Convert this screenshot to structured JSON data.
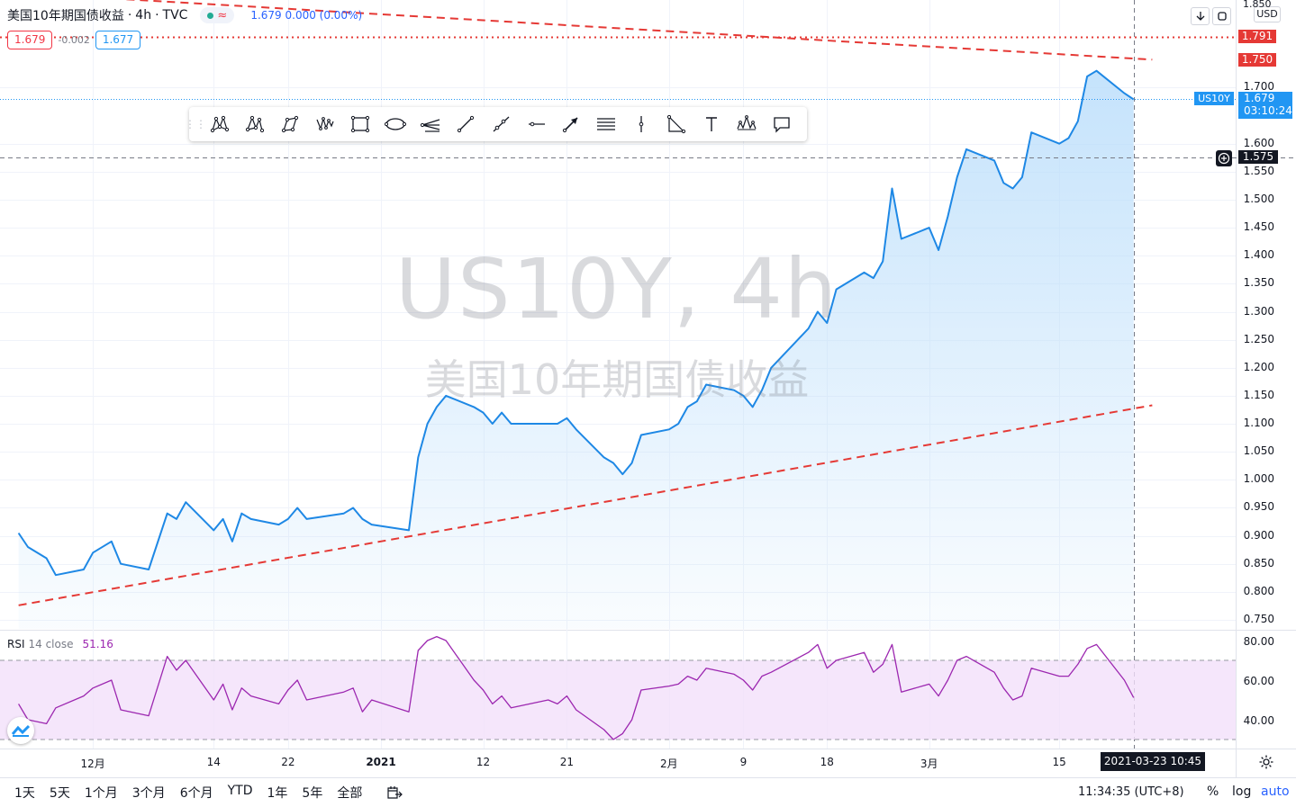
{
  "header": {
    "symbol_name": "美国10年期国债收益",
    "interval": "4h",
    "exchange": "TVC",
    "market_status": "green-dot-icon",
    "quote": "1.679 0.000 (0.00%)",
    "sell_price": "1.679",
    "spread": "-0.002",
    "buy_price": "1.677"
  },
  "watermark": {
    "symbol": "US10Y, 4h",
    "name": "美国10年期国债收益"
  },
  "right_top": {
    "currency": "USD",
    "top_tick": "1.850"
  },
  "toolbar": {
    "tools": [
      "xabcd-pattern-icon",
      "cypher-pattern-icon",
      "abcd-pattern-icon",
      "triangle-pattern-icon",
      "rectangle-icon",
      "ellipse-icon",
      "pitchfork-icon",
      "trend-line-icon",
      "ray-icon",
      "horizontal-ray-icon",
      "arrow-icon",
      "parallel-channel-icon",
      "vertical-line-icon",
      "fib-retracement-icon",
      "text-icon",
      "head-shoulders-icon",
      "callout-icon"
    ]
  },
  "price_tags": {
    "level_1791": "1.791",
    "level_1750": "1.750",
    "symbol_tag": "US10Y",
    "last_price": "1.679",
    "countdown": "03:10:24",
    "crosshair_price": "1.575"
  },
  "crosshair_time": "2021-03-23 10:45",
  "rsi": {
    "label": "RSI",
    "params": "14 close",
    "value": "51.16",
    "ticks": [
      "80.00",
      "60.00",
      "40.00"
    ]
  },
  "bottom_bar": {
    "ranges": [
      "1天",
      "5天",
      "1个月",
      "3个月",
      "6个月",
      "YTD",
      "1年",
      "5年",
      "全部"
    ],
    "clock": "11:34:35 (UTC+8)",
    "percent": "%",
    "log": "log",
    "auto": "auto"
  },
  "colors": {
    "line": "#1e88e5",
    "area_top": "#bbdefb",
    "trendline": "#e53935",
    "rsi_line": "#9c27b0",
    "rsi_band": "#f3e0fa",
    "last_price_tag": "#2196f3"
  },
  "chart_data": [
    {
      "type": "area",
      "title": "",
      "x_ticks": [
        "12月",
        "14",
        "22",
        "2021",
        "12",
        "21",
        "2月",
        "9",
        "18",
        "3月",
        "15"
      ],
      "y_ticks": [
        "1.700",
        "1.600",
        "1.550",
        "1.500",
        "1.450",
        "1.400",
        "1.350",
        "1.300",
        "1.250",
        "1.200",
        "1.150",
        "1.100",
        "1.050",
        "1.000",
        "0.950",
        "0.900",
        "0.850",
        "0.800",
        "0.750"
      ],
      "ylim": [
        0.73,
        1.85
      ],
      "x": [
        "2020-11-23",
        "2020-11-24",
        "2020-11-26",
        "2020-11-27",
        "2020-11-30",
        "2020-12-01",
        "2020-12-03",
        "2020-12-04",
        "2020-12-07",
        "2020-12-09",
        "2020-12-10",
        "2020-12-11",
        "2020-12-14",
        "2020-12-15",
        "2020-12-16",
        "2020-12-17",
        "2020-12-18",
        "2020-12-21",
        "2020-12-22",
        "2020-12-23",
        "2020-12-24",
        "2020-12-28",
        "2020-12-29",
        "2020-12-30",
        "2020-12-31",
        "2021-01-04",
        "2021-01-05",
        "2021-01-06",
        "2021-01-07",
        "2021-01-08",
        "2021-01-11",
        "2021-01-12",
        "2021-01-13",
        "2021-01-14",
        "2021-01-15",
        "2021-01-19",
        "2021-01-20",
        "2021-01-21",
        "2021-01-22",
        "2021-01-25",
        "2021-01-26",
        "2021-01-27",
        "2021-01-28",
        "2021-01-29",
        "2021-02-01",
        "2021-02-02",
        "2021-02-03",
        "2021-02-04",
        "2021-02-05",
        "2021-02-08",
        "2021-02-09",
        "2021-02-10",
        "2021-02-11",
        "2021-02-12",
        "2021-02-16",
        "2021-02-17",
        "2021-02-18",
        "2021-02-19",
        "2021-02-22",
        "2021-02-23",
        "2021-02-24",
        "2021-02-25",
        "2021-02-26",
        "2021-03-01",
        "2021-03-02",
        "2021-03-03",
        "2021-03-04",
        "2021-03-05",
        "2021-03-08",
        "2021-03-09",
        "2021-03-10",
        "2021-03-11",
        "2021-03-12",
        "2021-03-15",
        "2021-03-16",
        "2021-03-17",
        "2021-03-18",
        "2021-03-19",
        "2021-03-22",
        "2021-03-23"
      ],
      "series": [
        {
          "values": [
            0.905,
            0.88,
            0.86,
            0.83,
            0.84,
            0.87,
            0.89,
            0.85,
            0.84,
            0.94,
            0.93,
            0.96,
            0.91,
            0.93,
            0.89,
            0.94,
            0.93,
            0.92,
            0.93,
            0.95,
            0.93,
            0.94,
            0.95,
            0.93,
            0.92,
            0.91,
            1.04,
            1.1,
            1.13,
            1.15,
            1.13,
            1.12,
            1.1,
            1.12,
            1.1,
            1.1,
            1.1,
            1.11,
            1.09,
            1.04,
            1.03,
            1.01,
            1.03,
            1.08,
            1.09,
            1.1,
            1.13,
            1.14,
            1.17,
            1.16,
            1.15,
            1.13,
            1.16,
            1.2,
            1.27,
            1.3,
            1.28,
            1.34,
            1.37,
            1.36,
            1.39,
            1.52,
            1.43,
            1.45,
            1.41,
            1.47,
            1.54,
            1.59,
            1.57,
            1.53,
            1.52,
            1.54,
            1.62,
            1.6,
            1.61,
            1.64,
            1.72,
            1.73,
            1.69,
            1.679
          ]
        }
      ],
      "trendlines": [
        {
          "style": "dashed",
          "from": [
            "2020-11-23",
            0.776
          ],
          "to": [
            "2021-03-25",
            1.133
          ]
        },
        {
          "style": "dashed",
          "from": [
            "2020-11-23",
            1.869
          ],
          "to": [
            "2021-03-25",
            1.75
          ]
        },
        {
          "style": "dotted",
          "value": 1.791
        },
        {
          "style": "dotted",
          "value": 1.679
        },
        {
          "style": "dashed",
          "value": 1.575
        }
      ]
    },
    {
      "type": "line",
      "title": "",
      "y_ticks": [
        "80.00",
        "60.00",
        "40.00"
      ],
      "ylim": [
        25,
        85
      ],
      "band": [
        30,
        70
      ],
      "x": [
        "2020-11-23",
        "2020-11-24",
        "2020-11-26",
        "2020-11-27",
        "2020-11-30",
        "2020-12-01",
        "2020-12-03",
        "2020-12-04",
        "2020-12-07",
        "2020-12-09",
        "2020-12-10",
        "2020-12-11",
        "2020-12-14",
        "2020-12-15",
        "2020-12-16",
        "2020-12-17",
        "2020-12-18",
        "2020-12-21",
        "2020-12-22",
        "2020-12-23",
        "2020-12-24",
        "2020-12-28",
        "2020-12-29",
        "2020-12-30",
        "2020-12-31",
        "2021-01-04",
        "2021-01-05",
        "2021-01-06",
        "2021-01-07",
        "2021-01-08",
        "2021-01-11",
        "2021-01-12",
        "2021-01-13",
        "2021-01-14",
        "2021-01-15",
        "2021-01-19",
        "2021-01-20",
        "2021-01-21",
        "2021-01-22",
        "2021-01-25",
        "2021-01-26",
        "2021-01-27",
        "2021-01-28",
        "2021-01-29",
        "2021-02-01",
        "2021-02-02",
        "2021-02-03",
        "2021-02-04",
        "2021-02-05",
        "2021-02-08",
        "2021-02-09",
        "2021-02-10",
        "2021-02-11",
        "2021-02-12",
        "2021-02-16",
        "2021-02-17",
        "2021-02-18",
        "2021-02-19",
        "2021-02-22",
        "2021-02-23",
        "2021-02-24",
        "2021-02-25",
        "2021-02-26",
        "2021-03-01",
        "2021-03-02",
        "2021-03-03",
        "2021-03-04",
        "2021-03-05",
        "2021-03-08",
        "2021-03-09",
        "2021-03-10",
        "2021-03-11",
        "2021-03-12",
        "2021-03-15",
        "2021-03-16",
        "2021-03-17",
        "2021-03-18",
        "2021-03-19",
        "2021-03-22",
        "2021-03-23"
      ],
      "series": [
        {
          "values": [
            48,
            40,
            38,
            46,
            52,
            56,
            60,
            45,
            42,
            72,
            65,
            70,
            50,
            58,
            45,
            56,
            52,
            48,
            55,
            60,
            50,
            54,
            56,
            44,
            50,
            44,
            75,
            80,
            82,
            80,
            60,
            55,
            48,
            52,
            46,
            50,
            48,
            52,
            45,
            35,
            30,
            33,
            40,
            55,
            57,
            58,
            62,
            60,
            66,
            63,
            60,
            55,
            62,
            64,
            74,
            78,
            66,
            70,
            74,
            64,
            68,
            78,
            54,
            58,
            52,
            60,
            70,
            72,
            64,
            56,
            50,
            52,
            66,
            62,
            62,
            68,
            76,
            78,
            60,
            51.16
          ]
        }
      ]
    }
  ]
}
